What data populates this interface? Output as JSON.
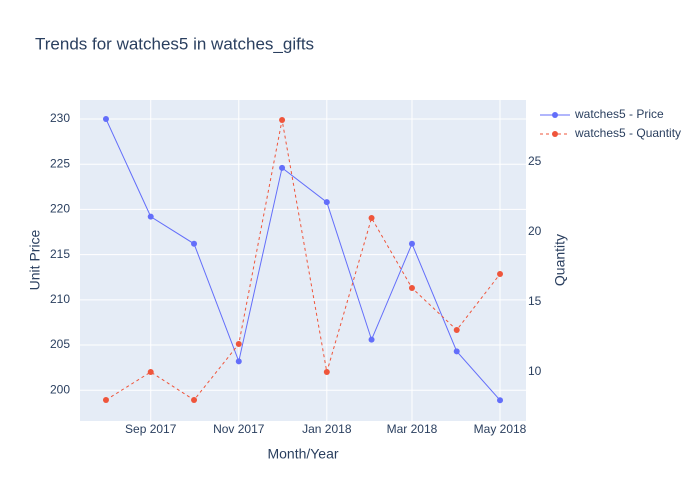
{
  "chart_data": {
    "type": "line",
    "title": "Trends for watches5 in watches_gifts",
    "x_label": "Month/Year",
    "y_label": "Unit Price",
    "y2_label": "Quantity",
    "x": [
      "2017-08",
      "2017-09",
      "2017-10",
      "2017-11",
      "2017-12",
      "2018-01",
      "2018-02",
      "2018-03",
      "2018-04",
      "2018-05"
    ],
    "series": [
      {
        "name": "watches5 - Price",
        "color": "#636efa",
        "dash": "solid",
        "axis": "y",
        "values": [
          230,
          219.2,
          216.2,
          203.2,
          224.6,
          220.8,
          205.6,
          216.2,
          204.3,
          198.9
        ]
      },
      {
        "name": "watches5 - Quantity",
        "color": "#EF553B",
        "dash": "dash",
        "axis": "y2",
        "values": [
          8,
          10,
          8,
          12,
          28,
          10,
          21,
          16,
          13,
          17
        ]
      }
    ],
    "xlim": [
      "2017-07-14",
      "2018-05-19"
    ],
    "xticks": [
      {
        "value": "2017-09",
        "label": "Sep 2017"
      },
      {
        "value": "2017-11",
        "label": "Nov 2017"
      },
      {
        "value": "2018-01",
        "label": "Jan 2018"
      },
      {
        "value": "2018-03",
        "label": "Mar 2018"
      },
      {
        "value": "2018-05",
        "label": "May 2018"
      }
    ],
    "ylim": [
      196.6,
      232.1
    ],
    "yticks": [
      200,
      205,
      210,
      215,
      220,
      225,
      230
    ],
    "y2lim": [
      6.5,
      29.43
    ],
    "y2ticks": [
      10,
      15,
      20,
      25
    ],
    "grid": true,
    "legend": "top-right"
  }
}
